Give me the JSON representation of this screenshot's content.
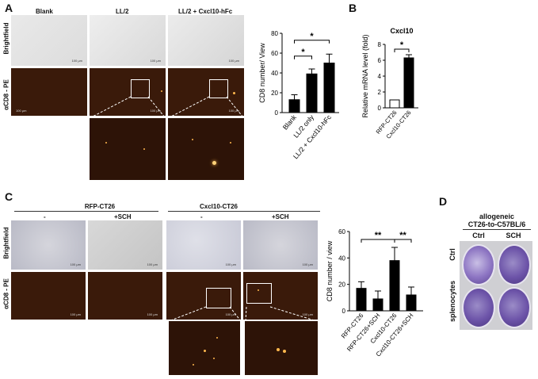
{
  "panels": {
    "A": {
      "letter": "A",
      "columns": [
        "Blank",
        "LL/2",
        "LL/2 + Cxcl10-hFc"
      ],
      "rows": [
        "Brightfield",
        "αCD8 - PE"
      ],
      "scale_label": "100 μm"
    },
    "B": {
      "letter": "B"
    },
    "C": {
      "letter": "C",
      "groups": [
        "RFP-CT26",
        "Cxcl10-CT26"
      ],
      "conditions": [
        "-",
        "+SCH",
        "-",
        "+SCH"
      ],
      "rows": [
        "Brightfield",
        "αCD8 - PE"
      ],
      "scale_label": "100 μm"
    },
    "D": {
      "letter": "D",
      "title_line1": "allogeneic",
      "title_line2": "CT26-to-C57BL/6",
      "columns": [
        "Ctrl",
        "SCH"
      ],
      "rows": [
        "Ctrl",
        "splenocytes"
      ]
    }
  },
  "chart_data": [
    {
      "type": "bar",
      "panel": "A",
      "categories": [
        "Blank",
        "LL/2 only",
        "LL/2 + Cxcl10-hFc"
      ],
      "values": [
        13,
        39,
        50
      ],
      "errors": [
        5,
        5,
        9
      ],
      "ylabel": "CD8 number/ View",
      "ylim": [
        0,
        80
      ],
      "yticks": [
        0,
        20,
        40,
        60,
        80
      ],
      "significance": [
        {
          "from": 0,
          "to": 1,
          "label": "*"
        },
        {
          "from": 0,
          "to": 2,
          "label": "*"
        }
      ],
      "bar_colors": [
        "#000000",
        "#000000",
        "#000000"
      ]
    },
    {
      "type": "bar",
      "panel": "B",
      "title": "Cxcl10",
      "categories": [
        "RFP-CT26",
        "Cxcl10-CT26"
      ],
      "values": [
        1,
        6.3
      ],
      "errors": [
        0,
        0.4
      ],
      "ylabel": "Relative mRNA level (fold)",
      "ylim": [
        0,
        8
      ],
      "yticks": [
        0,
        2,
        4,
        6,
        8
      ],
      "significance": [
        {
          "from": 0,
          "to": 1,
          "label": "*"
        }
      ],
      "bar_colors": [
        "#ffffff",
        "#000000"
      ]
    },
    {
      "type": "bar",
      "panel": "C",
      "categories": [
        "RFP-CT26",
        "RFP-CT26+SCH",
        "Cxcl10-CT26",
        "Cxcl10-CT26+SCH"
      ],
      "values": [
        17,
        9,
        38,
        12
      ],
      "errors": [
        5,
        6,
        10,
        6
      ],
      "ylabel": "CD8 number / view",
      "ylim": [
        0,
        60
      ],
      "yticks": [
        0,
        20,
        40,
        60
      ],
      "significance": [
        {
          "from": 0,
          "to": 2,
          "label": "**"
        },
        {
          "from": 2,
          "to": 3,
          "label": "**"
        }
      ],
      "bar_colors": [
        "#000000",
        "#000000",
        "#000000",
        "#000000"
      ]
    }
  ]
}
